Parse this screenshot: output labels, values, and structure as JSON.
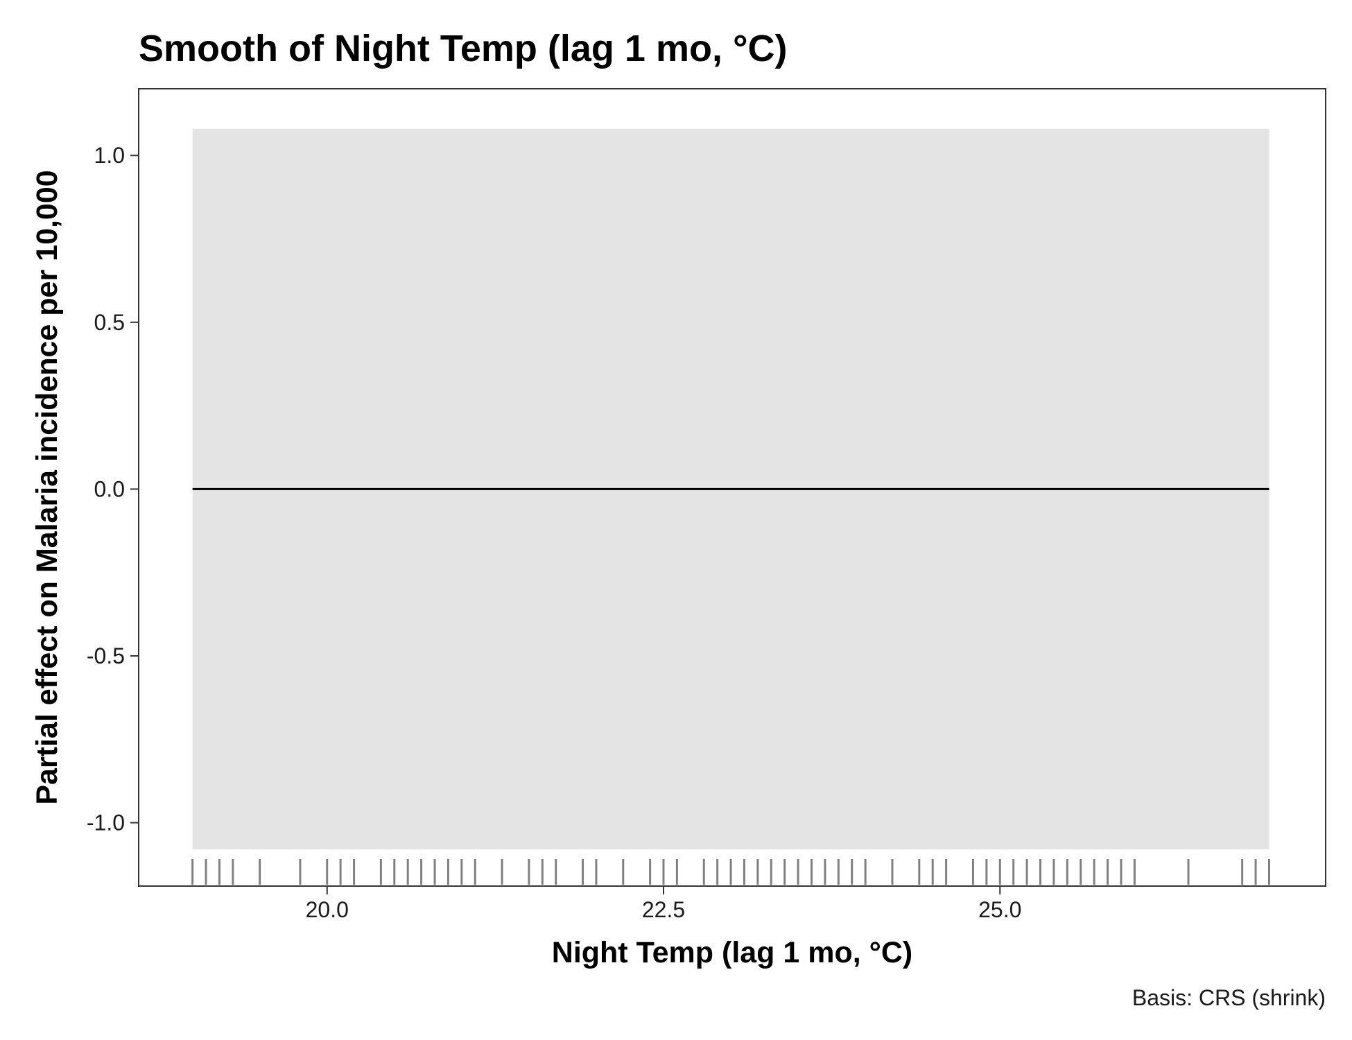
{
  "chart_data": {
    "type": "line",
    "title": "Smooth of Night Temp (lag 1 mo, °C)",
    "xlabel": "Night Temp (lag 1 mo, °C)",
    "ylabel": "Partial effect on Malaria incidence per 10,000",
    "caption": "Basis: CRS (shrink)",
    "xlim": [
      18.6,
      27.42
    ],
    "ylim": [
      -1.19,
      1.2
    ],
    "x_ticks": [
      {
        "value": 20.0,
        "label": "20.0"
      },
      {
        "value": 22.5,
        "label": "22.5"
      },
      {
        "value": 25.0,
        "label": "25.0"
      }
    ],
    "y_ticks": [
      {
        "value": 1.0,
        "label": "1.0"
      },
      {
        "value": 0.5,
        "label": "0.5"
      },
      {
        "value": 0.0,
        "label": "0.0"
      },
      {
        "value": -0.5,
        "label": "-0.5"
      },
      {
        "value": -1.0,
        "label": "-1.0"
      }
    ],
    "series": [
      {
        "x": [
          19.0,
          27.0
        ],
        "y": [
          0.0,
          0.0
        ]
      }
    ],
    "ribbon": {
      "x": [
        19.0,
        27.0
      ],
      "lower": [
        -1.08,
        -1.08
      ],
      "upper": [
        1.08,
        1.08
      ],
      "color": "#e4e4e4"
    },
    "rug": [
      19.0,
      19.1,
      19.2,
      19.3,
      19.5,
      19.8,
      20.0,
      20.1,
      20.2,
      20.4,
      20.5,
      20.6,
      20.7,
      20.8,
      20.9,
      21.0,
      21.1,
      21.3,
      21.5,
      21.6,
      21.7,
      21.9,
      22.0,
      22.2,
      22.4,
      22.5,
      22.6,
      22.8,
      22.9,
      23.0,
      23.1,
      23.2,
      23.3,
      23.4,
      23.5,
      23.6,
      23.7,
      23.8,
      23.9,
      24.0,
      24.2,
      24.4,
      24.5,
      24.6,
      24.8,
      24.9,
      25.0,
      25.1,
      25.2,
      25.3,
      25.4,
      25.5,
      25.6,
      25.7,
      25.8,
      25.9,
      26.0,
      26.4,
      26.8,
      26.9,
      27.0
    ],
    "grid": false,
    "colors": {
      "line": "#000000",
      "rug": "#808080",
      "panel_border": "#333333"
    }
  }
}
